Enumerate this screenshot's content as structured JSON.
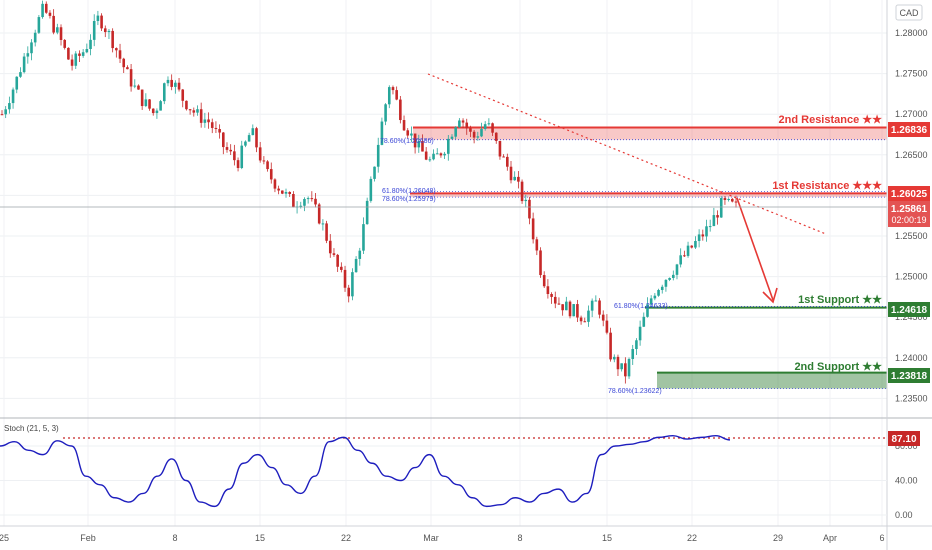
{
  "header": {
    "currency": "CAD"
  },
  "colors": {
    "bull": "#26a69a",
    "bear": "#c62828",
    "resistance": "#e53935",
    "support": "#2e7d32",
    "stoch_line": "#1e1ebe",
    "fib_text": "#3a46d6"
  },
  "price_axis": {
    "ticks": [
      "1.28000",
      "1.27500",
      "1.27000",
      "1.26500",
      "1.26000",
      "1.25500",
      "1.25000",
      "1.24500",
      "1.24000",
      "1.23500"
    ]
  },
  "levels": {
    "second_resistance": {
      "label": "2nd Resistance ★★",
      "value": "1.26836"
    },
    "first_resistance": {
      "label": "1st Resistance ★★★",
      "value": "1.26025"
    },
    "first_support": {
      "label": "1st Support ★★",
      "value": "1.24618"
    },
    "second_support": {
      "label": "2nd Support ★★",
      "value": "1.23818"
    }
  },
  "current_price": {
    "value": "1.25861",
    "countdown": "02:00:19"
  },
  "fib_labels": {
    "a": "78.60%(1.26686)",
    "b": "61.80%(1.26048)",
    "c": "78.60%(1.25979)",
    "d": "61.80%(1.24633)",
    "e": "78.60%(1.23622)"
  },
  "stoch": {
    "title": "Stoch (21, 5, 3)",
    "value": "87.10",
    "ticks": [
      "80.00",
      "40.00",
      "0.00"
    ]
  },
  "time_axis": {
    "labels": [
      "25",
      "Feb",
      "8",
      "15",
      "22",
      "Mar",
      "8",
      "15",
      "22",
      "29",
      "Apr",
      "6"
    ]
  },
  "chart_data": {
    "type": "candlestick",
    "symbol_currency": "CAD",
    "y_range": [
      1.2325,
      1.2835
    ],
    "x_labels": [
      "25",
      "Feb",
      "8",
      "15",
      "22",
      "Mar",
      "8",
      "15",
      "22",
      "29",
      "Apr",
      "6"
    ],
    "price_path": [
      [
        1.27,
        1.274,
        1.279,
        1.283,
        1.28,
        1.276,
        1.278,
        1.282,
        1.279,
        1.275,
        1.272,
        1.27,
        1.275,
        1.272,
        1.27,
        1.269,
        1.266,
        1.264,
        1.268,
        1.263,
        1.261,
        1.259,
        1.26,
        1.257,
        1.252,
        1.248,
        1.255,
        1.265,
        1.274,
        1.269,
        1.266,
        1.264,
        1.266,
        1.27,
        1.267,
        1.269,
        1.265,
        1.262,
        1.258,
        1.25,
        1.247,
        1.246,
        1.245,
        1.247,
        1.24,
        1.238,
        1.243,
        1.248,
        1.25,
        1.252,
        1.254,
        1.256,
        1.259,
        1.2586
      ]
    ],
    "levels": [
      {
        "name": "2nd Resistance",
        "value": 1.26836,
        "stars": 2
      },
      {
        "name": "1st Resistance",
        "value": 1.26025,
        "stars": 3
      },
      {
        "name": "1st Support",
        "value": 1.24618,
        "stars": 2
      },
      {
        "name": "2nd Support",
        "value": 1.23818,
        "stars": 2
      }
    ],
    "fibonacci": [
      {
        "ratio": "78.60%",
        "value": 1.26686
      },
      {
        "ratio": "61.80%",
        "value": 1.26048
      },
      {
        "ratio": "78.60%",
        "value": 1.25979
      },
      {
        "ratio": "61.80%",
        "value": 1.24633
      },
      {
        "ratio": "78.60%",
        "value": 1.23622
      }
    ],
    "current_price": 1.25861,
    "stochastic": {
      "params": "21, 5, 3",
      "value": 87.1,
      "y_ticks": [
        80,
        40,
        0
      ],
      "values": [
        80,
        85,
        75,
        70,
        86,
        80,
        45,
        35,
        20,
        15,
        25,
        45,
        65,
        40,
        15,
        10,
        30,
        60,
        70,
        55,
        35,
        25,
        45,
        85,
        90,
        75,
        60,
        45,
        40,
        55,
        70,
        45,
        35,
        20,
        10,
        12,
        20,
        15,
        25,
        30,
        15,
        25,
        70,
        80,
        82,
        85,
        90,
        92,
        88,
        90,
        92,
        87.1
      ]
    }
  }
}
